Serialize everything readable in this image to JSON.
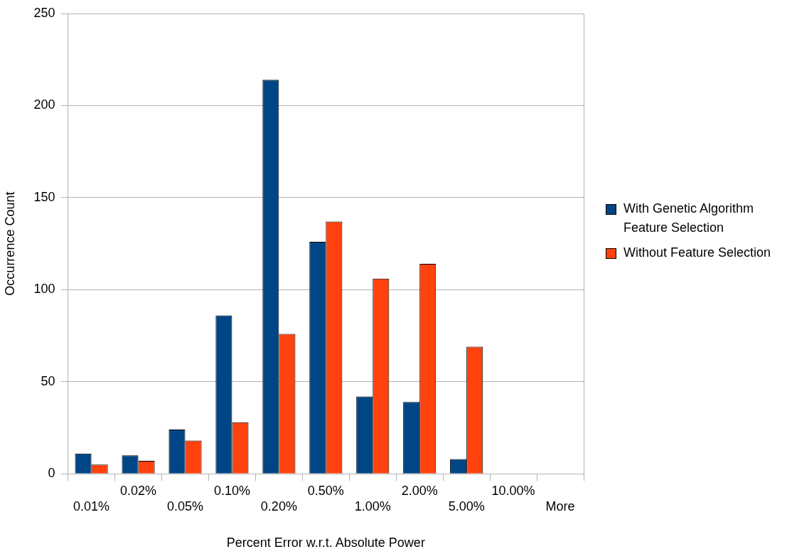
{
  "chart_data": {
    "type": "bar",
    "xlabel": "Percent Error w.r.t. Absolute Power",
    "ylabel": "Occurrence Count",
    "categories": [
      "0.01%",
      "0.02%",
      "0.05%",
      "0.10%",
      "0.20%",
      "0.50%",
      "1.00%",
      "2.00%",
      "5.00%",
      "10.00%",
      "More"
    ],
    "series": [
      {
        "name": "With Genetic Algorithm Feature Selection",
        "color": "#004586",
        "values": [
          11,
          10,
          24,
          86,
          214,
          126,
          42,
          39,
          8,
          0,
          0
        ]
      },
      {
        "name": "Without Feature Selection",
        "color": "#ff420e",
        "values": [
          5,
          7,
          18,
          28,
          76,
          137,
          106,
          114,
          69,
          0,
          0
        ]
      }
    ],
    "ylim": [
      0,
      250
    ],
    "yticks": [
      0,
      50,
      100,
      150,
      200,
      250
    ],
    "grid": "y",
    "legend": "right"
  }
}
